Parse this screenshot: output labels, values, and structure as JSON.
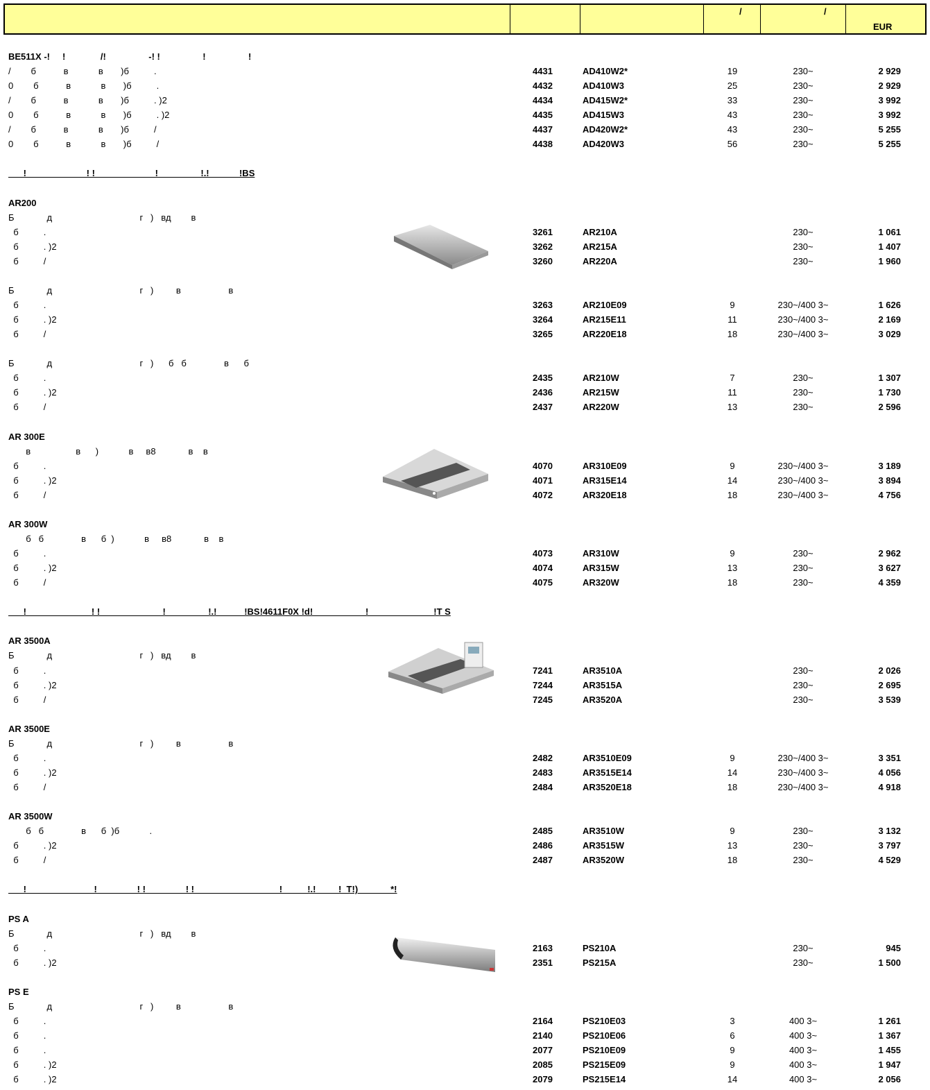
{
  "header": {
    "c4": "/",
    "c5": "/",
    "c6": "EUR"
  },
  "blocks": [
    {
      "title": "BE511X -!     !              /!                 -! !                 !                 !",
      "rows": [
        {
          "text": "/        б           в            в       )б          .",
          "code": "4431",
          "model": "AD410W2*",
          "kw": "19",
          "volt": "230~",
          "price": "2 929"
        },
        {
          "text": "0        б           в            в       )б          .",
          "code": "4432",
          "model": "AD410W3",
          "kw": "25",
          "volt": "230~",
          "price": "2 929"
        },
        {
          "text": "/        б           в            в       )б          . )2",
          "code": "4434",
          "model": "AD415W2*",
          "kw": "33",
          "volt": "230~",
          "price": "3 992"
        },
        {
          "text": "0        б           в            в       )б          . )2",
          "code": "4435",
          "model": "AD415W3",
          "kw": "43",
          "volt": "230~",
          "price": "3 992"
        },
        {
          "text": "/        б           в            в       )б          /",
          "code": "4437",
          "model": "AD420W2*",
          "kw": "43",
          "volt": "230~",
          "price": "5 255"
        },
        {
          "text": "0        б           в            в       )б          /",
          "code": "4438",
          "model": "AD420W3",
          "kw": "56",
          "volt": "230~",
          "price": "5 255"
        }
      ]
    },
    {
      "heading": "      !                        ! !                        !                 !.!            !BS"
    },
    {
      "title": "AR200",
      "rows": [
        {
          "text": "Б             д                                   г   )   вд        в"
        },
        {
          "text": "  б          .",
          "code": "3261",
          "model": "AR210A",
          "volt": "230~",
          "price": "1 061"
        },
        {
          "text": "  б          . )2",
          "code": "3262",
          "model": "AR215A",
          "volt": "230~",
          "price": "1 407"
        },
        {
          "text": "  б          /",
          "code": "3260",
          "model": "AR220A",
          "volt": "230~",
          "price": "1 960"
        }
      ]
    },
    {
      "rows": [
        {
          "text": "Б             д                                   г   )         в                   в"
        },
        {
          "text": "  б          .",
          "code": "3263",
          "model": "AR210E09",
          "kw": "9",
          "volt": "230~/400 3~",
          "price": "1 626"
        },
        {
          "text": "  б          . )2",
          "code": "3264",
          "model": "AR215E11",
          "kw": "11",
          "volt": "230~/400 3~",
          "price": "2 169"
        },
        {
          "text": "  б          /",
          "code": "3265",
          "model": "AR220E18",
          "kw": "18",
          "volt": "230~/400 3~",
          "price": "3 029"
        }
      ]
    },
    {
      "rows": [
        {
          "text": "Б             д                                   г   )      б   б               в      б"
        },
        {
          "text": "  б          .",
          "code": "2435",
          "model": "AR210W",
          "kw": "7",
          "volt": "230~",
          "price": "1 307"
        },
        {
          "text": "  б          . )2",
          "code": "2436",
          "model": "AR215W",
          "kw": "11",
          "volt": "230~",
          "price": "1 730"
        },
        {
          "text": "  б          /",
          "code": "2437",
          "model": "AR220W",
          "kw": "13",
          "volt": "230~",
          "price": "2 596"
        }
      ]
    },
    {
      "title": "AR 300E",
      "rows": [
        {
          "text": "       в                  в      )            в     в8             в    в"
        },
        {
          "text": "  б          .",
          "code": "4070",
          "model": "AR310E09",
          "kw": "9",
          "volt": "230~/400 3~",
          "price": "3 189"
        },
        {
          "text": "  б          . )2",
          "code": "4071",
          "model": "AR315E14",
          "kw": "14",
          "volt": "230~/400 3~",
          "price": "3 894"
        },
        {
          "text": "  б          /",
          "code": "4072",
          "model": "AR320E18",
          "kw": "18",
          "volt": "230~/400 3~",
          "price": "4 756"
        }
      ]
    },
    {
      "title": "AR 300W",
      "rows": [
        {
          "text": "       б   б               в      б  )            в     в8             в    в"
        },
        {
          "text": "  б          .",
          "code": "4073",
          "model": "AR310W",
          "kw": "9",
          "volt": "230~",
          "price": "2 962"
        },
        {
          "text": "  б          . )2",
          "code": "4074",
          "model": "AR315W",
          "kw": "13",
          "volt": "230~",
          "price": "3 627"
        },
        {
          "text": "  б          /",
          "code": "4075",
          "model": "AR320W",
          "kw": "18",
          "volt": "230~",
          "price": "4 359"
        }
      ]
    },
    {
      "heading": "      !                          ! !                         !                 !.!           !BS!4611F0X !d!                     !                          !T S"
    },
    {
      "title": "AR 3500A",
      "rows": [
        {
          "text": "Б             д                                   г   )   вд        в"
        },
        {
          "text": "  б          .",
          "code": "7241",
          "model": "AR3510A",
          "volt": "230~",
          "price": "2 026"
        },
        {
          "text": "  б          . )2",
          "code": "7244",
          "model": "AR3515A",
          "volt": "230~",
          "price": "2 695"
        },
        {
          "text": "  б          /",
          "code": "7245",
          "model": "AR3520A",
          "volt": "230~",
          "price": "3 539"
        }
      ]
    },
    {
      "title": "AR 3500E",
      "rows": [
        {
          "text": "Б             д                                   г   )         в                   в"
        },
        {
          "text": "  б          .",
          "code": "2482",
          "model": "AR3510E09",
          "kw": "9",
          "volt": "230~/400 3~",
          "price": "3 351"
        },
        {
          "text": "  б          . )2",
          "code": "2483",
          "model": "AR3515E14",
          "kw": "14",
          "volt": "230~/400 3~",
          "price": "4 056"
        },
        {
          "text": "  б          /",
          "code": "2484",
          "model": "AR3520E18",
          "kw": "18",
          "volt": "230~/400 3~",
          "price": "4 918"
        }
      ]
    },
    {
      "title": "AR 3500W",
      "rows": [
        {
          "text": "       б   б               в      б  )б            .",
          "code": "2485",
          "model": "AR3510W",
          "kw": "9",
          "volt": "230~",
          "price": "3 132"
        },
        {
          "text": "  б          . )2",
          "code": "2486",
          "model": "AR3515W",
          "kw": "13",
          "volt": "230~",
          "price": "3 797"
        },
        {
          "text": "  б          /",
          "code": "2487",
          "model": "AR3520W",
          "kw": "18",
          "volt": "230~",
          "price": "4 529"
        }
      ]
    },
    {
      "heading": "      !                           !                ! !                ! !                                  !          !.!         !  T!)             *!"
    },
    {
      "title": "PS A",
      "rows": [
        {
          "text": "Б             д                                   г   )   вд        в"
        },
        {
          "text": "  б          .",
          "code": "2163",
          "model": "PS210A",
          "volt": "230~",
          "price": "945"
        },
        {
          "text": "  б          . )2",
          "code": "2351",
          "model": "PS215A",
          "volt": "230~",
          "price": "1 500"
        }
      ]
    },
    {
      "title": "PS E",
      "rows": [
        {
          "text": "Б             д                                   г   )         в                   в"
        },
        {
          "text": "  б          .",
          "code": "2164",
          "model": "PS210E03",
          "kw": "3",
          "volt": "400 3~",
          "price": "1 261"
        },
        {
          "text": "  б          .",
          "code": "2140",
          "model": "PS210E06",
          "kw": "6",
          "volt": "400 3~",
          "price": "1 367"
        },
        {
          "text": "  б          .",
          "code": "2077",
          "model": "PS210E09",
          "kw": "9",
          "volt": "400 3~",
          "price": "1 455"
        },
        {
          "text": "  б          . )2",
          "code": "2085",
          "model": "PS215E09",
          "kw": "9",
          "volt": "400 3~",
          "price": "1 947"
        },
        {
          "text": "  б          . )2",
          "code": "2079",
          "model": "PS215E14",
          "kw": "14",
          "volt": "400 3~",
          "price": "2 056"
        }
      ]
    }
  ]
}
